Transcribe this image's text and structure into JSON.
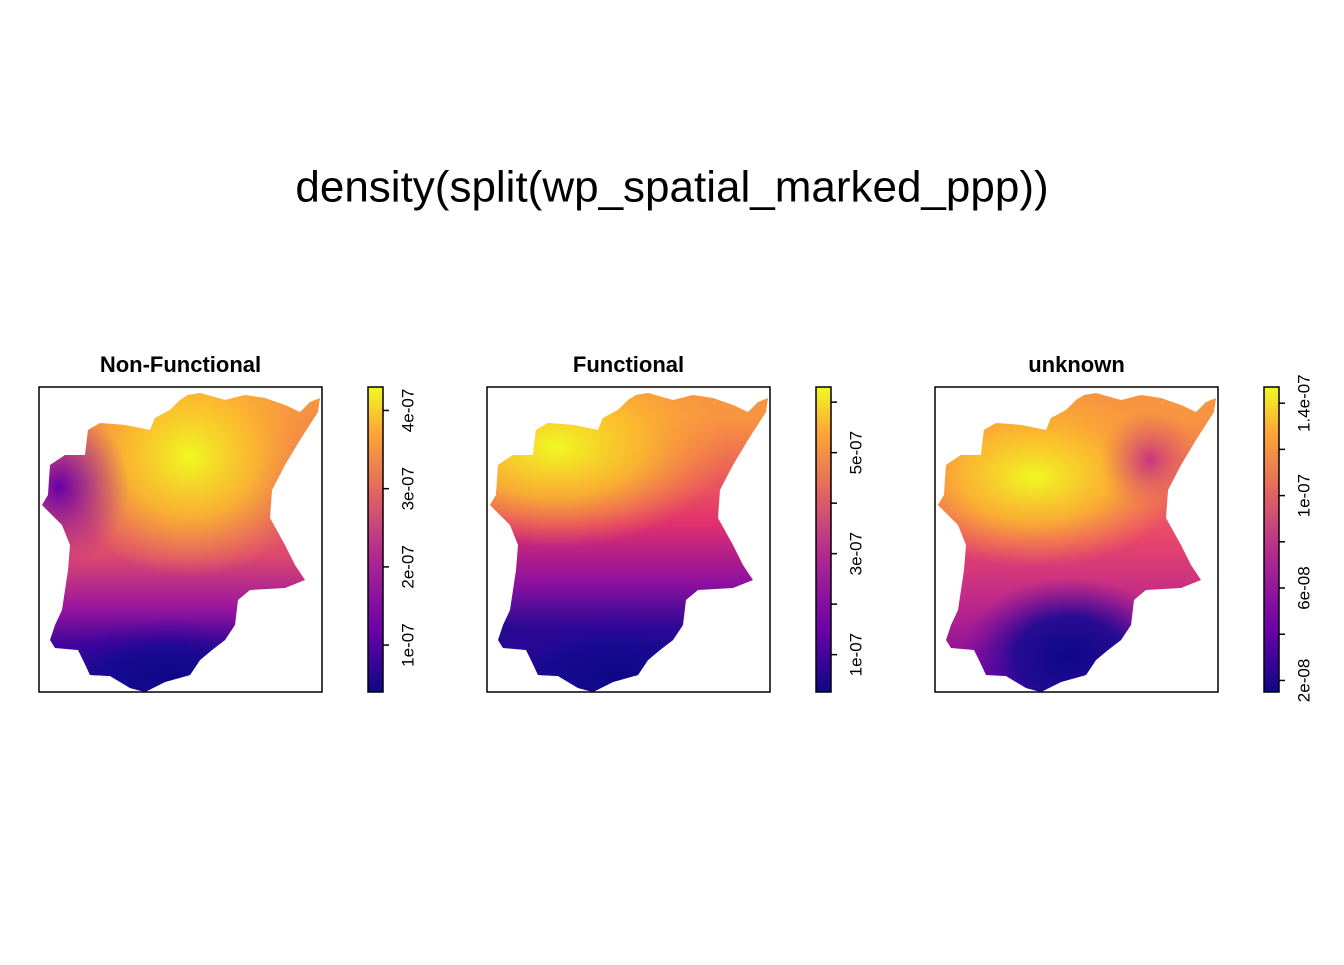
{
  "title": "density(split(wp_spatial_marked_ppp))",
  "chart_data": [
    {
      "type": "heatmap",
      "title": "Non-Functional",
      "zlim": [
        4e-08,
        4.3e-07
      ],
      "zticks": [
        {
          "value": 1e-07,
          "label": "1e-07"
        },
        {
          "value": 2e-07,
          "label": "2e-07"
        },
        {
          "value": 3e-07,
          "label": "3e-07"
        },
        {
          "value": 4e-07,
          "label": "4e-07"
        }
      ]
    },
    {
      "type": "heatmap",
      "title": "Functional",
      "zlim": [
        2.6e-08,
        6.3e-07
      ],
      "zticks": [
        {
          "value": 1e-07,
          "label": "1e-07"
        },
        {
          "value": 2e-07,
          "label": null
        },
        {
          "value": 3e-07,
          "label": "3e-07"
        },
        {
          "value": 4e-07,
          "label": null
        },
        {
          "value": 5e-07,
          "label": "5e-07"
        },
        {
          "value": 6e-07,
          "label": null
        }
      ]
    },
    {
      "type": "heatmap",
      "title": "unknown",
      "zlim": [
        1.5e-08,
        1.47e-07
      ],
      "zticks": [
        {
          "value": 2e-08,
          "label": "2e-08"
        },
        {
          "value": 4e-08,
          "label": null
        },
        {
          "value": 6e-08,
          "label": "6e-08"
        },
        {
          "value": 8e-08,
          "label": null
        },
        {
          "value": 1e-07,
          "label": "1e-07"
        },
        {
          "value": 1.2e-07,
          "label": null
        },
        {
          "value": 1.4e-07,
          "label": "1.4e-07"
        }
      ]
    }
  ]
}
